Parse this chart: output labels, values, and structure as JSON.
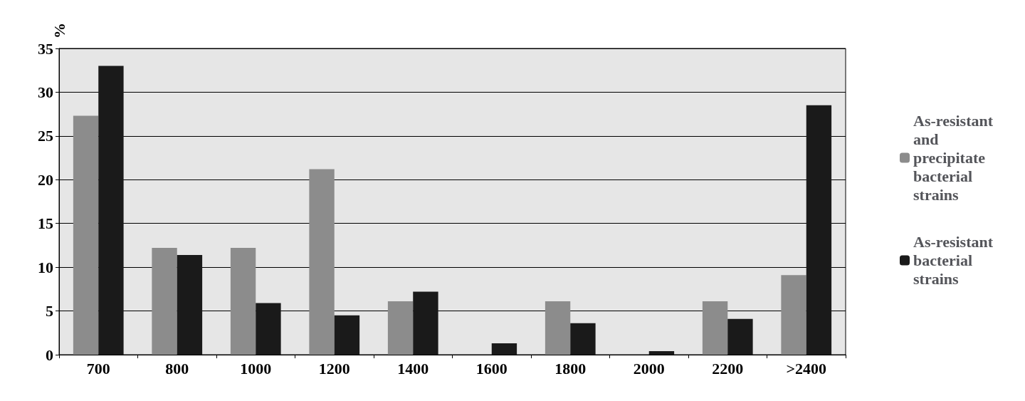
{
  "chart_data": {
    "type": "bar",
    "ylabel": "%",
    "categories": [
      "700",
      "800",
      "1000",
      "1200",
      "1400",
      "1600",
      "1800",
      "2000",
      "2200",
      ">2400"
    ],
    "series": [
      {
        "name": "As-resistant and precipitate bacterial strains",
        "color": "#8c8c8c",
        "values": [
          27.3,
          12.2,
          12.2,
          21.2,
          6.1,
          0,
          6.1,
          0,
          6.1,
          9.1
        ]
      },
      {
        "name": "As-resistant bacterial strains",
        "color": "#1a1a1a",
        "values": [
          33,
          11.4,
          5.9,
          4.5,
          7.2,
          1.3,
          3.6,
          0.4,
          4.1,
          28.5
        ]
      }
    ],
    "ylim": [
      0,
      35
    ],
    "yticks": [
      0,
      5,
      10,
      15,
      20,
      25,
      30,
      35
    ],
    "grid": "y",
    "legend": "right"
  }
}
